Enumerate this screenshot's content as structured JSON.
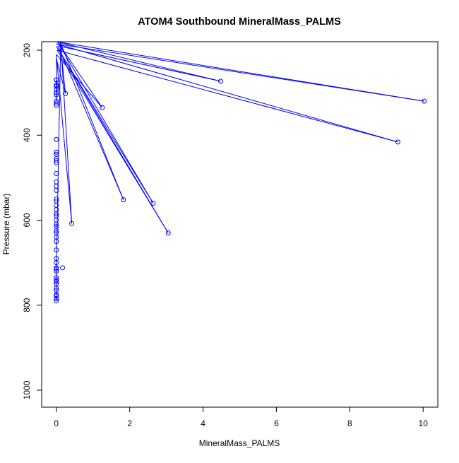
{
  "chart_data": {
    "type": "line",
    "title": "ATOM4 Southbound MineralMass_PALMS",
    "xlabel": "MineralMass_PALMS",
    "ylabel": "Pressure (mbar)",
    "xlim": [
      -0.4,
      10.4
    ],
    "ylim": [
      1040,
      180
    ],
    "y_reversed": true,
    "x_ticks": [
      0,
      2,
      4,
      6,
      8,
      10
    ],
    "y_ticks": [
      200,
      400,
      600,
      800,
      1000
    ],
    "x_tick_labels": [
      "0",
      "2",
      "4",
      "6",
      "8",
      "10"
    ],
    "y_tick_labels": [
      "200",
      "400",
      "600",
      "800",
      "1000"
    ],
    "grid": false,
    "legend": "none",
    "series_color": "#0000ff",
    "series": [
      {
        "x": [
          0.0,
          0.0,
          0.01,
          0.0,
          0.02,
          0.0,
          0.25,
          0.1,
          1.83,
          0.05,
          4.48,
          0.0,
          10.03,
          0.0,
          9.31,
          0.02,
          3.05,
          0.0,
          2.64,
          0.03,
          1.25,
          0.0,
          0.42,
          0.12,
          0.0,
          0.01,
          0.0,
          0.0
        ],
        "y": [
          270,
          285,
          300,
          320,
          290,
          220,
          302,
          180,
          552,
          190,
          273,
          180,
          320,
          185,
          416,
          200,
          630,
          190,
          560,
          180,
          335,
          210,
          608,
          180,
          712,
          740,
          760,
          790
        ]
      }
    ],
    "markers": {
      "x": [
        0.0,
        0.0,
        0.0,
        0.0,
        0.0,
        0.0,
        0.0,
        0.0,
        0.0,
        0.0,
        0.0,
        0.0,
        0.0,
        0.0,
        0.0,
        0.0,
        0.0,
        0.0,
        0.0,
        0.0,
        0.0,
        0.0,
        0.0,
        0.0,
        0.0,
        0.0,
        0.0,
        0.0,
        0.0,
        0.0,
        0.0,
        0.0,
        0.0,
        0.0,
        0.0,
        0.0,
        0.0,
        0.0,
        0.0,
        0.0,
        0.0,
        0.0,
        0.0,
        0.0,
        0.0,
        0.0,
        0.0,
        0.0,
        0.0,
        0.0,
        0.25,
        1.25,
        1.83,
        4.48,
        10.03,
        9.31,
        2.64,
        3.05,
        0.42,
        0.17
      ],
      "y": [
        270,
        285,
        300,
        320,
        325,
        410,
        440,
        445,
        460,
        465,
        490,
        510,
        530,
        550,
        555,
        575,
        590,
        600,
        615,
        625,
        640,
        650,
        670,
        700,
        712,
        720,
        740,
        745,
        760,
        775,
        790,
        292,
        282,
        305,
        330,
        455,
        520,
        565,
        585,
        610,
        630,
        690,
        715,
        735,
        750,
        765,
        778,
        785,
        270,
        440,
        302,
        335,
        552,
        273,
        320,
        416,
        560,
        630,
        608,
        712
      ]
    }
  }
}
